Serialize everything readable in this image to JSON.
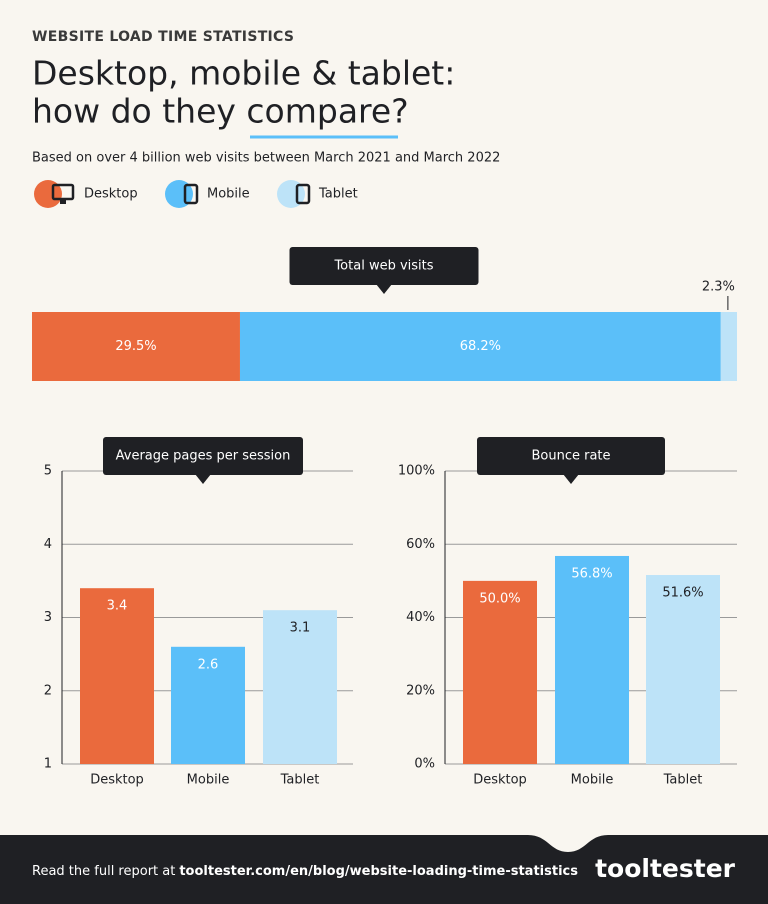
{
  "header": {
    "eyebrow": "WEBSITE LOAD TIME STATISTICS",
    "title_line1": "Desktop, mobile & tablet:",
    "title_line2": "how do they compare?",
    "subtitle": "Based on over 4 billion web visits between March 2021 and March 2022"
  },
  "legend": [
    {
      "name": "Desktop",
      "color": "#ea6a3d"
    },
    {
      "name": "Mobile",
      "color": "#5bbff9"
    },
    {
      "name": "Tablet",
      "color": "#bde3f8"
    }
  ],
  "chart_data": [
    {
      "type": "stacked_bar",
      "title": "Total web visits",
      "xlim": [
        0,
        100
      ],
      "series": [
        {
          "name": "Desktop",
          "color": "#ea6a3d",
          "values": [
            29.5
          ],
          "value_labels": [
            "29.5%"
          ]
        },
        {
          "name": "Mobile",
          "color": "#5bbff9",
          "values": [
            68.2
          ],
          "value_labels": [
            "68.2%"
          ]
        },
        {
          "name": "Tablet",
          "color": "#bde3f8",
          "values": [
            2.3
          ],
          "value_labels": [
            "2.3%"
          ]
        }
      ]
    },
    {
      "type": "bar",
      "title": "Average pages per session",
      "categories": [
        "Desktop",
        "Mobile",
        "Tablet"
      ],
      "values": [
        3.4,
        2.6,
        3.1
      ],
      "colors": [
        "#ea6a3d",
        "#5bbff9",
        "#bde3f8"
      ],
      "ylim": [
        1,
        5
      ],
      "yticks": [
        1,
        2,
        3,
        4,
        5
      ],
      "grid": true
    },
    {
      "type": "bar",
      "title": "Bounce rate",
      "categories": [
        "Desktop",
        "Mobile",
        "Tablet"
      ],
      "values": [
        50.0,
        56.8,
        51.6
      ],
      "value_labels": [
        "50.0%",
        "56.8%",
        "51.6%"
      ],
      "colors": [
        "#ea6a3d",
        "#5bbff9",
        "#bde3f8"
      ],
      "ylim": [
        0,
        100
      ],
      "yticks": [
        {
          "value": 0,
          "label": "0%"
        },
        {
          "value": 20,
          "label": "20%"
        },
        {
          "value": 40,
          "label": "40%"
        },
        {
          "value": 60,
          "label": "60%"
        },
        {
          "value": 100,
          "label": "100%"
        }
      ],
      "grid": true
    }
  ],
  "footer": {
    "text": "Read the full report at",
    "link": "tooltester.com/en/blog/website-loading-time-statistics",
    "logo": "tooltester"
  }
}
